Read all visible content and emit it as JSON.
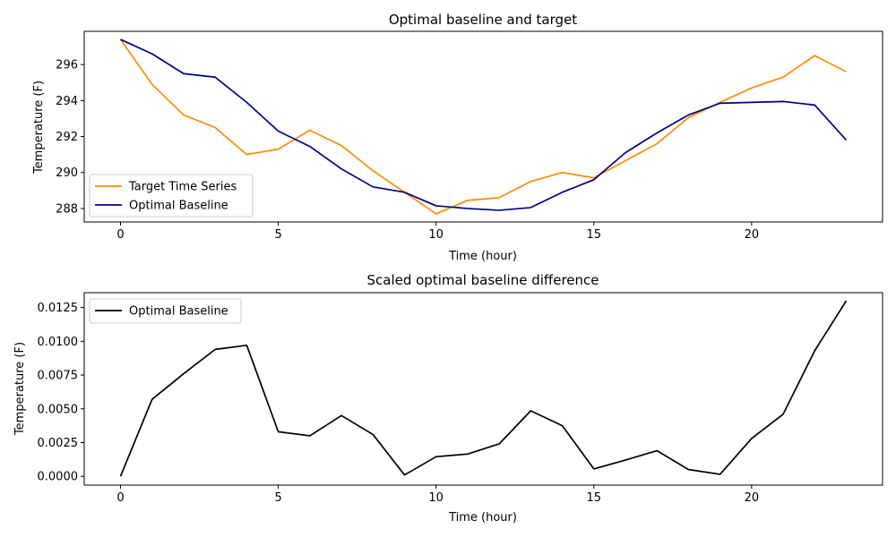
{
  "chart_data": [
    {
      "type": "line",
      "title": "Optimal baseline and target",
      "xlabel": "Time (hour)",
      "ylabel": "Temperature (F)",
      "xlim": [
        -1.15,
        24.15
      ],
      "ylim": [
        287.25,
        297.85
      ],
      "xticks": [
        0,
        5,
        10,
        15,
        20
      ],
      "yticks": [
        288,
        290,
        292,
        294,
        296
      ],
      "ytick_labels": [
        "288",
        "290",
        "292",
        "294",
        "296"
      ],
      "legend_position": "lower-left",
      "x": [
        0,
        1,
        2,
        3,
        4,
        5,
        6,
        7,
        8,
        9,
        10,
        11,
        12,
        13,
        14,
        15,
        16,
        17,
        18,
        19,
        20,
        21,
        22,
        23
      ],
      "series": [
        {
          "name": "Target Time Series",
          "color": "#ff8c00",
          "values": [
            297.4,
            294.9,
            293.2,
            292.5,
            291.0,
            291.3,
            292.35,
            291.5,
            290.1,
            288.9,
            287.7,
            288.45,
            288.6,
            289.5,
            290.0,
            289.7,
            290.65,
            291.6,
            293.05,
            293.9,
            294.7,
            295.3,
            296.5,
            295.6
          ]
        },
        {
          "name": "Optimal Baseline",
          "color": "#00008b",
          "values": [
            297.4,
            296.6,
            295.5,
            295.3,
            293.9,
            292.3,
            291.45,
            290.2,
            289.2,
            288.9,
            288.15,
            288.0,
            287.9,
            288.05,
            288.9,
            289.6,
            291.1,
            292.2,
            293.2,
            293.85,
            293.9,
            293.95,
            293.75,
            291.8
          ]
        }
      ]
    },
    {
      "type": "line",
      "title": "Scaled optimal baseline difference",
      "xlabel": "Time (hour)",
      "ylabel": "Temperature (F)",
      "xlim": [
        -1.15,
        24.15
      ],
      "ylim": [
        -0.00065,
        0.0136
      ],
      "xticks": [
        0,
        5,
        10,
        15,
        20
      ],
      "yticks": [
        0,
        0.0025,
        0.005,
        0.0075,
        0.01,
        0.0125
      ],
      "ytick_labels": [
        "0.0000",
        "0.0025",
        "0.0050",
        "0.0075",
        "0.0100",
        "0.0125"
      ],
      "legend_position": "upper-left",
      "x": [
        0,
        1,
        2,
        3,
        4,
        5,
        6,
        7,
        8,
        9,
        10,
        11,
        12,
        13,
        14,
        15,
        16,
        17,
        18,
        19,
        20,
        21,
        22,
        23
      ],
      "series": [
        {
          "name": "Optimal Baseline",
          "color": "#000000",
          "values": [
            0.0,
            0.0057,
            0.0076,
            0.0094,
            0.0097,
            0.0033,
            0.003,
            0.0045,
            0.0031,
            0.0001,
            0.00145,
            0.00165,
            0.0024,
            0.00485,
            0.00375,
            0.00055,
            0.0012,
            0.0019,
            0.0005,
            0.00015,
            0.0028,
            0.0046,
            0.0093,
            0.013
          ]
        }
      ]
    }
  ]
}
